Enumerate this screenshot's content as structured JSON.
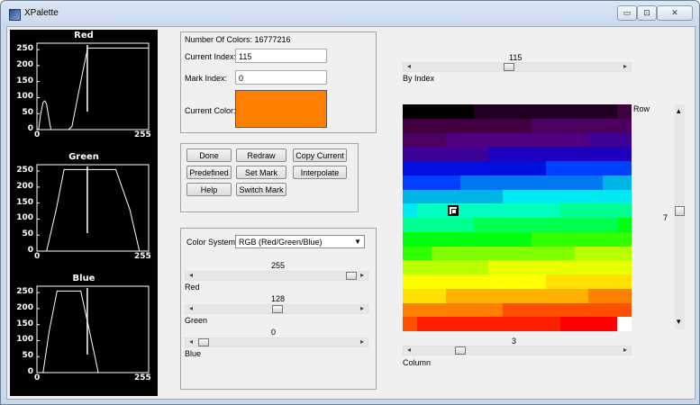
{
  "window": {
    "title": "XPalette",
    "controls": [
      "▭",
      "⊡",
      "✕"
    ]
  },
  "plots": [
    {
      "name": "Red",
      "color": "#ffffff",
      "yticks": [
        "250",
        "200",
        "150",
        "100",
        "50",
        "0"
      ],
      "xticks": [
        "0",
        "255"
      ],
      "curve": [
        [
          0,
          0
        ],
        [
          4,
          2
        ],
        [
          8,
          45
        ],
        [
          14,
          85
        ],
        [
          18,
          90
        ],
        [
          22,
          80
        ],
        [
          28,
          30
        ],
        [
          32,
          0
        ],
        [
          72,
          0
        ],
        [
          80,
          10
        ],
        [
          90,
          80
        ],
        [
          100,
          150
        ],
        [
          112,
          230
        ],
        [
          116,
          255
        ],
        [
          255,
          255
        ]
      ],
      "marker_index": 115
    },
    {
      "name": "Green",
      "color": "#ffffff",
      "yticks": [
        "250",
        "200",
        "150",
        "100",
        "50",
        "0"
      ],
      "xticks": [
        "0",
        "255"
      ],
      "curve": [
        [
          0,
          0
        ],
        [
          22,
          0
        ],
        [
          44,
          130
        ],
        [
          62,
          255
        ],
        [
          128,
          255
        ],
        [
          180,
          255
        ],
        [
          212,
          130
        ],
        [
          234,
          0
        ],
        [
          255,
          0
        ]
      ],
      "marker_index": 115
    },
    {
      "name": "Blue",
      "color": "#ffffff",
      "yticks": [
        "250",
        "200",
        "150",
        "100",
        "50",
        "0"
      ],
      "xticks": [
        "0",
        "255"
      ],
      "curve": [
        [
          0,
          0
        ],
        [
          14,
          0
        ],
        [
          28,
          130
        ],
        [
          46,
          255
        ],
        [
          100,
          255
        ],
        [
          120,
          130
        ],
        [
          140,
          0
        ],
        [
          255,
          0
        ]
      ],
      "marker_index": 115
    }
  ],
  "info": {
    "num_colors_label": "Number Of Colors: 16777216",
    "current_index_label": "Current Index:",
    "current_index_value": "115",
    "mark_index_label": "Mark Index:",
    "mark_index_value": "0",
    "current_color_label": "Current Color:",
    "current_color": "#ff8000"
  },
  "buttons": {
    "done": "Done",
    "redraw": "Redraw",
    "copy_current": "Copy Current",
    "predefined": "Predefined",
    "set_mark": "Set Mark",
    "interpolate": "Interpolate",
    "help": "Help",
    "switch_mark": "Switch Mark"
  },
  "color_system": {
    "label": "Color System:",
    "selected": "RGB  (Red/Green/Blue)",
    "sliders": [
      {
        "name": "Red",
        "value": "255",
        "fraction": 1.0
      },
      {
        "name": "Green",
        "value": "128",
        "fraction": 0.502
      },
      {
        "name": "Blue",
        "value": "0",
        "fraction": 0.0
      }
    ]
  },
  "index_slider": {
    "value": "115",
    "label": "By Index",
    "fraction": 0.451
  },
  "column_slider": {
    "value": "3",
    "label": "Column",
    "fraction": 0.2
  },
  "row_slider": {
    "value": "7",
    "label": "Row",
    "fraction": 0.47
  },
  "palette": {
    "rows": 16,
    "cols": 16,
    "selected_row": 7,
    "selected_col": 3,
    "colors": [
      "#000000",
      "#200020",
      "#400040",
      "#4e0061",
      "#500080",
      "#3f0095",
      "#1d00bd",
      "#0010e0",
      "#0040ff",
      "#0078f0",
      "#00b4e8",
      "#00e8f0",
      "#00ffc0",
      "#00ff90",
      "#00ff50",
      "#00ff10",
      "#30ff00",
      "#80ff00",
      "#b8ff00",
      "#e8ff00",
      "#ffff00",
      "#ffe000",
      "#ffb000",
      "#ff8000",
      "#ff5000",
      "#ff2000",
      "#ff0000"
    ]
  },
  "arrows": {
    "left": "◂",
    "right": "▸",
    "up": "▴",
    "down": "▾"
  }
}
